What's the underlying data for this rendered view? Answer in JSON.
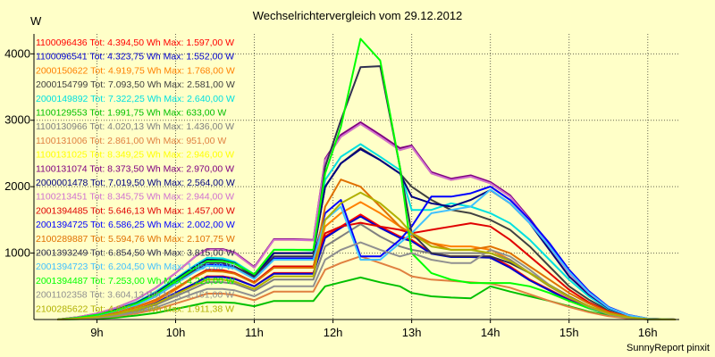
{
  "title": "Wechselrichtervergleich vom 29.12.2012",
  "y_unit": "W",
  "footer": "SunnyReport pinxit",
  "chart_data": {
    "type": "line",
    "title": "Wechselrichtervergleich vom 29.12.2012",
    "xlabel": "",
    "ylabel": "W",
    "xlim": [
      8.2,
      16.4
    ],
    "ylim": [
      0,
      4300
    ],
    "xticks": [
      9,
      10,
      11,
      12,
      13,
      14,
      15,
      16
    ],
    "xtick_labels": [
      "9h",
      "10h",
      "11h",
      "12h",
      "13h",
      "14h",
      "15h",
      "16h"
    ],
    "yticks": [
      1000,
      2000,
      3000,
      4000
    ],
    "ytick_labels": [
      "1000",
      "2000",
      "3000",
      "4000"
    ],
    "grid": true,
    "legend_position": "top-left",
    "x": [
      8.5,
      8.75,
      9,
      9.25,
      9.5,
      9.75,
      10,
      10.25,
      10.4,
      10.6,
      10.75,
      11,
      11.25,
      11.5,
      11.75,
      11.9,
      12.1,
      12.35,
      12.6,
      12.85,
      13,
      13.25,
      13.5,
      13.75,
      14,
      14.25,
      14.5,
      14.75,
      15,
      15.25,
      15.5,
      15.75,
      16,
      16.35
    ],
    "series": [
      {
        "name": "1100096436",
        "legend": "1100096436 Tot: 4.394,50 Wh Max: 1.597,00 W",
        "color": "#ff0000",
        "values": [
          0,
          15,
          40,
          80,
          150,
          250,
          400,
          550,
          650,
          650,
          620,
          500,
          700,
          700,
          700,
          1250,
          1400,
          1580,
          1400,
          1250,
          1200,
          1000,
          950,
          950,
          950,
          800,
          600,
          450,
          300,
          180,
          80,
          30,
          5,
          0
        ]
      },
      {
        "name": "1100096541",
        "legend": "1100096541 Tot: 4.323,75 Wh Max: 1.552,00 W",
        "color": "#0000d0",
        "values": [
          0,
          15,
          40,
          80,
          150,
          250,
          400,
          550,
          640,
          640,
          610,
          500,
          690,
          690,
          690,
          1230,
          1380,
          1552,
          1380,
          1230,
          1180,
          990,
          940,
          940,
          930,
          780,
          590,
          440,
          290,
          170,
          75,
          25,
          5,
          0
        ]
      },
      {
        "name": "2000150622",
        "legend": "2000150622 Tot: 4.919,75 Wh Max: 1.768,00 W",
        "color": "#ff8000",
        "values": [
          0,
          20,
          50,
          100,
          180,
          280,
          450,
          650,
          750,
          740,
          700,
          550,
          800,
          800,
          790,
          1400,
          1600,
          1768,
          1600,
          1400,
          1250,
          1150,
          1100,
          1100,
          1050,
          900,
          700,
          500,
          340,
          200,
          90,
          35,
          8,
          0
        ]
      },
      {
        "name": "2000154799",
        "legend": "2000154799 Tot: 7.093,50 Wh Max: 2.581,00 W",
        "color": "#404040",
        "values": [
          0,
          30,
          80,
          150,
          250,
          400,
          600,
          800,
          900,
          900,
          850,
          650,
          1000,
          1000,
          1000,
          2000,
          2350,
          2581,
          2400,
          2200,
          2000,
          1800,
          1650,
          1600,
          1500,
          1350,
          1100,
          800,
          500,
          300,
          140,
          50,
          10,
          0
        ]
      },
      {
        "name": "2000149892",
        "legend": "2000149892 Tot: 7.322,25 Wh Max: 2.640,00 W",
        "color": "#00e0e0",
        "values": [
          0,
          30,
          80,
          160,
          260,
          420,
          620,
          820,
          930,
          920,
          870,
          680,
          1050,
          1050,
          1040,
          2100,
          2450,
          2640,
          2450,
          2250,
          1650,
          1650,
          1750,
          1700,
          1600,
          1450,
          1200,
          900,
          600,
          350,
          160,
          60,
          12,
          0
        ]
      },
      {
        "name": "1100129553",
        "legend": "1100129553 Tot: 1.991,75 Wh Max: 633,00 W",
        "color": "#00c000",
        "values": [
          0,
          5,
          15,
          30,
          60,
          100,
          160,
          220,
          260,
          260,
          250,
          200,
          280,
          280,
          280,
          500,
          560,
          633,
          560,
          500,
          400,
          350,
          330,
          320,
          500,
          420,
          350,
          280,
          200,
          120,
          60,
          20,
          4,
          0
        ]
      },
      {
        "name": "1100130966",
        "legend": "1100130966 Tot: 4.020,13 Wh Max: 1.436,00 W",
        "color": "#808080",
        "values": [
          0,
          15,
          35,
          70,
          130,
          220,
          350,
          480,
          560,
          560,
          540,
          430,
          600,
          600,
          600,
          1100,
          1250,
          1436,
          1250,
          1100,
          1050,
          1000,
          1000,
          1000,
          1000,
          900,
          700,
          500,
          330,
          190,
          85,
          30,
          6,
          0
        ]
      },
      {
        "name": "1100131006",
        "legend": "1100131006 Tot: 2.861,00 Wh Max: 951,00 W",
        "color": "#e08040",
        "values": [
          0,
          10,
          25,
          50,
          90,
          150,
          240,
          330,
          390,
          390,
          370,
          290,
          420,
          420,
          420,
          750,
          850,
          951,
          850,
          750,
          650,
          600,
          580,
          560,
          540,
          480,
          380,
          280,
          190,
          110,
          50,
          18,
          4,
          0
        ]
      },
      {
        "name": "1100131025",
        "legend": "1100131025 Tot: 8.349,25 Wh Max: 2.946,00 W",
        "color": "#ffff00",
        "values": [
          0,
          35,
          90,
          180,
          300,
          480,
          700,
          950,
          1050,
          1050,
          1000,
          780,
          1200,
          1200,
          1190,
          2400,
          2750,
          2946,
          2750,
          2550,
          2600,
          2200,
          2100,
          2150,
          2050,
          1850,
          1500,
          1100,
          700,
          400,
          180,
          65,
          12,
          0
        ]
      },
      {
        "name": "1100131074",
        "legend": "1100131074 Tot: 8.373,50 Wh Max: 2.970,00 W",
        "color": "#800080",
        "values": [
          0,
          35,
          90,
          180,
          300,
          480,
          700,
          950,
          1060,
          1060,
          1010,
          790,
          1210,
          1210,
          1200,
          2420,
          2780,
          2970,
          2780,
          2580,
          2620,
          2220,
          2120,
          2170,
          2070,
          1870,
          1520,
          1120,
          710,
          410,
          185,
          66,
          12,
          0
        ]
      },
      {
        "name": "2000001478",
        "legend": "2000001478 Tot: 7.019,50 Wh Max: 2.564,00 W",
        "color": "#000080",
        "values": [
          0,
          30,
          80,
          150,
          250,
          400,
          600,
          800,
          900,
          890,
          850,
          650,
          1000,
          1000,
          1000,
          2000,
          2350,
          2564,
          2400,
          2200,
          1850,
          1750,
          1700,
          1800,
          1950,
          1750,
          1450,
          1050,
          650,
          380,
          170,
          60,
          12,
          0
        ]
      },
      {
        "name": "1100213451",
        "legend": "1100213451 Tot: 8.345,75 Wh Max: 2.944,00 W",
        "color": "#d070d0",
        "values": [
          0,
          35,
          90,
          180,
          300,
          480,
          700,
          950,
          1050,
          1050,
          1000,
          780,
          1200,
          1200,
          1190,
          2400,
          2750,
          2944,
          2750,
          2550,
          2600,
          2200,
          2100,
          2150,
          2050,
          1850,
          1500,
          1100,
          700,
          400,
          180,
          65,
          12,
          0
        ]
      },
      {
        "name": "2001394485",
        "legend": "2001394485 Tot: 5.646,13 Wh Max: 1.457,00 W",
        "color": "#e00000",
        "values": [
          0,
          20,
          55,
          110,
          190,
          300,
          470,
          650,
          750,
          740,
          700,
          560,
          800,
          800,
          800,
          1300,
          1400,
          1457,
          1400,
          1350,
          1300,
          1350,
          1400,
          1450,
          1400,
          1200,
          950,
          700,
          450,
          260,
          120,
          45,
          10,
          0
        ]
      },
      {
        "name": "2001394725",
        "legend": "2001394725 Tot: 6.586,25 Wh Max: 2.002,00 W",
        "color": "#0000ff",
        "values": [
          0,
          25,
          70,
          130,
          220,
          350,
          540,
          730,
          820,
          820,
          780,
          620,
          920,
          920,
          920,
          1600,
          1800,
          950,
          950,
          1200,
          1400,
          1850,
          1850,
          1900,
          2002,
          1800,
          1500,
          1150,
          750,
          430,
          190,
          70,
          14,
          0
        ]
      },
      {
        "name": "2100289887",
        "legend": "2100289887 Tot: 5.594,76 Wh Max: 2.107,75 W",
        "color": "#e07000",
        "values": [
          0,
          20,
          55,
          110,
          190,
          300,
          470,
          640,
          730,
          720,
          690,
          550,
          780,
          780,
          780,
          1700,
          2107,
          2000,
          1700,
          1400,
          1300,
          1150,
          1050,
          1050,
          1100,
          1000,
          800,
          600,
          400,
          240,
          110,
          40,
          8,
          0
        ]
      },
      {
        "name": "2001393249",
        "legend": "2001393249 Tot: 6.854,50 Wh Max: 3.815,00 W",
        "color": "#303050",
        "values": [
          0,
          25,
          65,
          130,
          220,
          350,
          550,
          750,
          850,
          850,
          800,
          640,
          950,
          950,
          950,
          2300,
          3000,
          3800,
          3815,
          2300,
          1300,
          1000,
          950,
          950,
          950,
          850,
          700,
          520,
          350,
          200,
          90,
          30,
          6,
          0
        ]
      },
      {
        "name": "2001394723",
        "legend": "2001394723 Tot: 6.204,50 Wh Max: 1.955,00 W",
        "color": "#40c0ff",
        "values": [
          0,
          25,
          65,
          130,
          220,
          350,
          540,
          720,
          810,
          800,
          770,
          610,
          900,
          900,
          900,
          1500,
          1700,
          900,
          900,
          1150,
          1300,
          1600,
          1650,
          1700,
          1955,
          1750,
          1450,
          1100,
          720,
          410,
          180,
          65,
          13,
          0
        ]
      },
      {
        "name": "2001394487",
        "legend": "2001394487 Tot: 7.253,00 Wh Max: 4.226,00 W",
        "color": "#00ff00",
        "values": [
          0,
          25,
          70,
          140,
          240,
          380,
          580,
          780,
          880,
          880,
          840,
          680,
          1050,
          1050,
          1050,
          2200,
          2900,
          4226,
          3900,
          2300,
          1000,
          700,
          600,
          550,
          550,
          550,
          500,
          400,
          280,
          170,
          80,
          30,
          6,
          0
        ]
      },
      {
        "name": "2001102358",
        "legend": "2001102358 Tot: 3.604,13 Wh Max: 1.161,00 W",
        "color": "#909090",
        "values": [
          0,
          10,
          30,
          60,
          110,
          180,
          290,
          400,
          460,
          460,
          440,
          350,
          500,
          500,
          500,
          900,
          1050,
          1161,
          1050,
          950,
          1000,
          900,
          850,
          850,
          1050,
          950,
          750,
          520,
          340,
          190,
          80,
          25,
          5,
          0
        ]
      },
      {
        "name": "2100285622",
        "legend": "2100285622 Tot: 4.890,00 Wh Max: 1.911,38 W",
        "color": "#b0b000",
        "values": [
          0,
          15,
          40,
          80,
          150,
          240,
          380,
          520,
          600,
          600,
          570,
          460,
          650,
          650,
          650,
          1500,
          1750,
          1911,
          1750,
          1500,
          1300,
          1100,
          1050,
          1050,
          1000,
          880,
          700,
          510,
          340,
          200,
          90,
          32,
          7,
          0
        ]
      }
    ]
  }
}
